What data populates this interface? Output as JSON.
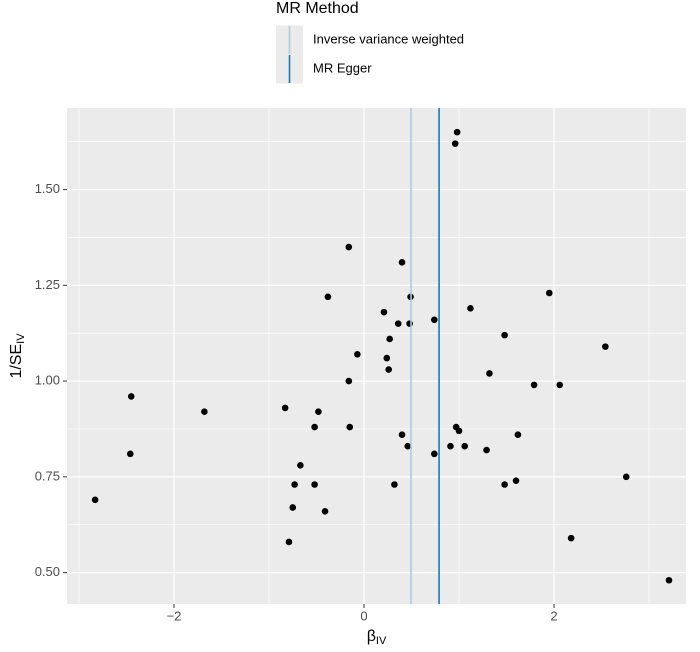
{
  "chart_data": {
    "type": "scatter",
    "legend_title": "MR Method",
    "x_label": {
      "text": "β",
      "subscript": "IV"
    },
    "y_label": {
      "text": "1/SE",
      "subscript": "IV"
    },
    "point_color": "#000000",
    "x": [
      -2.83,
      -2.45,
      -2.46,
      -1.68,
      -0.83,
      -0.79,
      -0.75,
      -0.73,
      -0.67,
      -0.52,
      -0.52,
      -0.48,
      -0.41,
      -0.38,
      -0.16,
      -0.16,
      -0.15,
      -0.07,
      0.21,
      0.24,
      0.26,
      0.27,
      0.32,
      0.36,
      0.4,
      0.4,
      0.46,
      0.48,
      0.49,
      0.74,
      0.74,
      0.91,
      0.96,
      0.98,
      0.97,
      1.0,
      1.06,
      1.12,
      1.29,
      1.32,
      1.48,
      1.48,
      1.6,
      1.62,
      1.79,
      1.95,
      2.06,
      2.18,
      2.54,
      2.76,
      3.21
    ],
    "y": [
      0.69,
      0.96,
      0.81,
      0.92,
      0.93,
      0.58,
      0.67,
      0.73,
      0.78,
      0.88,
      0.73,
      0.92,
      0.66,
      1.22,
      1.35,
      1.0,
      0.88,
      1.07,
      1.18,
      1.06,
      1.03,
      1.11,
      0.73,
      1.15,
      1.31,
      0.86,
      0.83,
      1.15,
      1.22,
      1.16,
      0.81,
      0.83,
      1.62,
      1.65,
      0.88,
      0.87,
      0.83,
      1.19,
      0.82,
      1.02,
      1.12,
      0.73,
      0.74,
      0.86,
      0.99,
      1.23,
      0.99,
      0.59,
      1.09,
      0.75,
      0.48
    ],
    "vlines": [
      {
        "name": "Inverse variance weighted",
        "color": "#a6cee3",
        "value": 0.495
      },
      {
        "name": "MR Egger",
        "color": "#1f78b4",
        "value": 0.79
      }
    ],
    "xlim": [
      -3.126,
      3.389
    ],
    "ylim": [
      0.418,
      1.713
    ],
    "xticks": [
      {
        "value": -2,
        "label": "−2"
      },
      0,
      2
    ],
    "yticks": [
      {
        "value": 0.5,
        "label": "0.50"
      },
      {
        "value": 0.75,
        "label": "0.75"
      },
      {
        "value": 1.0,
        "label": "1.00"
      },
      {
        "value": 1.25,
        "label": "1.25"
      },
      {
        "value": 1.5,
        "label": "1.50"
      }
    ],
    "x_minor_ticks": [
      -3,
      -1,
      1,
      3
    ],
    "y_minor_ticks": [
      0.625,
      0.875,
      1.125,
      1.375,
      1.625
    ],
    "grid": true
  }
}
